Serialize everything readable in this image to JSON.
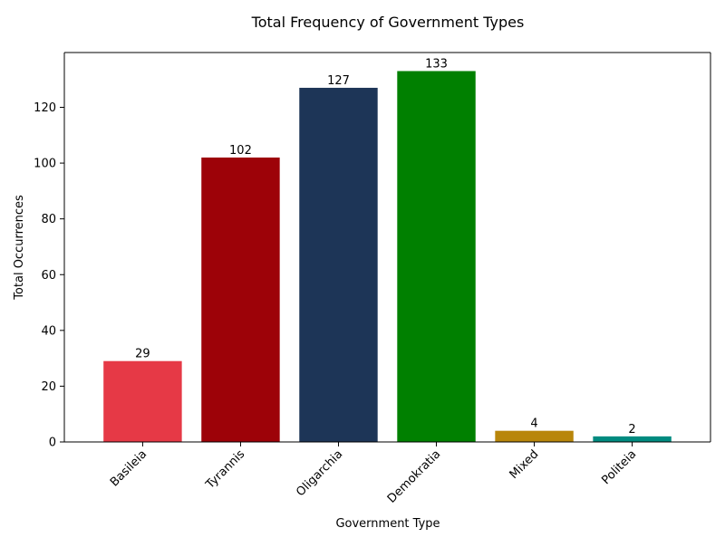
{
  "chart_data": {
    "type": "bar",
    "title": "Total Frequency of Government Types",
    "xlabel": "Government Type",
    "ylabel": "Total Occurrences",
    "categories": [
      "Basileia",
      "Tyrannis",
      "Oligarchia",
      "Demokratia",
      "Mixed",
      "Politeia"
    ],
    "values": [
      29,
      102,
      127,
      133,
      4,
      2
    ],
    "colors": [
      "#e63946",
      "#9d0208",
      "#1d3557",
      "#008000",
      "#b8860b",
      "#008b80"
    ],
    "ylim": [
      0,
      139.65
    ],
    "yticks": [
      0,
      20,
      40,
      60,
      80,
      100,
      120
    ],
    "grid": false,
    "legend": "none",
    "data_labels": true
  }
}
